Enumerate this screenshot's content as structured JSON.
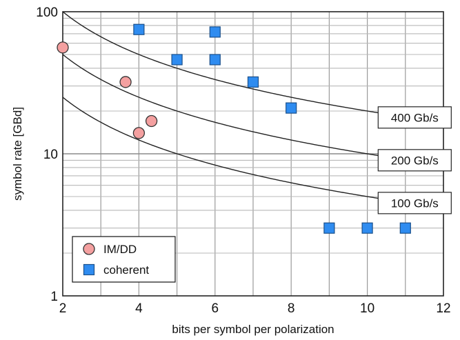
{
  "chart_data": {
    "type": "scatter",
    "xlabel": "bits per symbol per polarization",
    "ylabel": "symbol rate [GBd]",
    "xlim": [
      2,
      12
    ],
    "ylim": [
      1,
      100
    ],
    "yscale": "log",
    "xticks": [
      2,
      4,
      6,
      8,
      10,
      12
    ],
    "yticks": [
      1,
      10,
      100
    ],
    "grid": true,
    "legend_position": "bottom-left",
    "series": [
      {
        "name": "IM/DD",
        "marker": "circle",
        "color": "#f4a0a0",
        "points": [
          {
            "x": 2,
            "y": 56
          },
          {
            "x": 3.65,
            "y": 32
          },
          {
            "x": 4,
            "y": 14
          },
          {
            "x": 4.33,
            "y": 17
          }
        ]
      },
      {
        "name": "coherent",
        "marker": "square",
        "color": "#2f8cf0",
        "points": [
          {
            "x": 4,
            "y": 75
          },
          {
            "x": 5,
            "y": 46
          },
          {
            "x": 6,
            "y": 72
          },
          {
            "x": 6,
            "y": 46
          },
          {
            "x": 7,
            "y": 32
          },
          {
            "x": 8,
            "y": 21
          },
          {
            "x": 9,
            "y": 3
          },
          {
            "x": 10,
            "y": 3
          },
          {
            "x": 11,
            "y": 3
          }
        ]
      }
    ],
    "curves": [
      {
        "label": "100 Gb/s",
        "rate": 100
      },
      {
        "label": "200 Gb/s",
        "rate": 200
      },
      {
        "label": "400 Gb/s",
        "rate": 400
      }
    ]
  }
}
